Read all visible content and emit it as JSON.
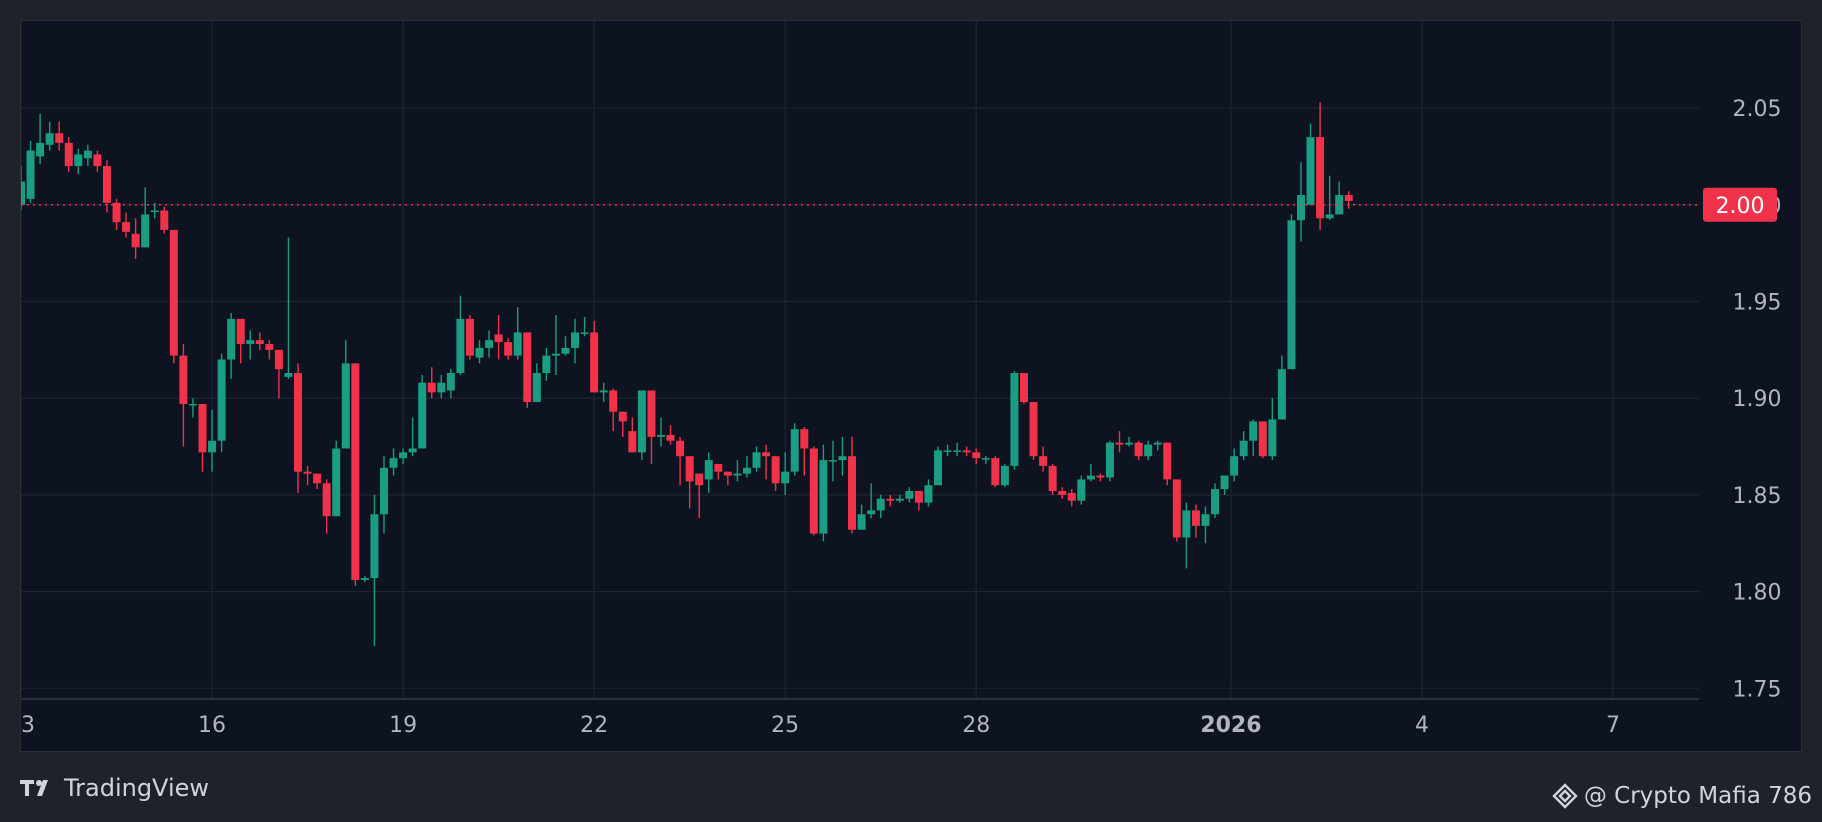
{
  "branding": {
    "logo_text": "TradingView",
    "attribution": "@ Crypto Mafia 786"
  },
  "colors": {
    "up": "#1a9d82",
    "down": "#f0334a",
    "last_price": "#f0334a"
  },
  "chart_data": {
    "type": "candlestick",
    "x_tick_labels": [
      {
        "label": "3",
        "day": 13
      },
      {
        "label": "16",
        "day": 16
      },
      {
        "label": "19",
        "day": 19
      },
      {
        "label": "22",
        "day": 22
      },
      {
        "label": "25",
        "day": 25
      },
      {
        "label": "28",
        "day": 28
      },
      {
        "label": "2026",
        "day": 32,
        "bold": true
      },
      {
        "label": "4",
        "day": 35
      },
      {
        "label": "7",
        "day": 38
      }
    ],
    "y_ticks": [
      "2.05",
      "2.00",
      "1.95",
      "1.90",
      "1.85",
      "1.80",
      "1.75"
    ],
    "ylim": [
      1.745,
      2.095
    ],
    "xlim_days": [
      13,
      39.35
    ],
    "grid": true,
    "last_price": "2.00",
    "candles": [
      [
        13.0,
        2.0,
        2.012,
        2.02,
        1.997
      ],
      [
        13.15,
        2.003,
        2.028,
        2.033,
        2.001
      ],
      [
        13.3,
        2.025,
        2.032,
        2.047,
        2.021
      ],
      [
        13.45,
        2.031,
        2.037,
        2.043,
        2.028
      ],
      [
        13.6,
        2.037,
        2.032,
        2.043,
        2.028
      ],
      [
        13.75,
        2.032,
        2.02,
        2.035,
        2.017
      ],
      [
        13.9,
        2.02,
        2.026,
        2.029,
        2.016
      ],
      [
        14.05,
        2.024,
        2.028,
        2.031,
        2.02
      ],
      [
        14.2,
        2.026,
        2.02,
        2.028,
        2.017
      ],
      [
        14.35,
        2.02,
        2.001,
        2.023,
        1.996
      ],
      [
        14.5,
        2.001,
        1.991,
        2.003,
        1.987
      ],
      [
        14.65,
        1.991,
        1.986,
        1.996,
        1.983
      ],
      [
        14.8,
        1.985,
        1.978,
        1.993,
        1.972
      ],
      [
        14.95,
        1.978,
        1.995,
        2.009,
        1.978
      ],
      [
        15.1,
        1.997,
        1.997,
        2.001,
        1.993
      ],
      [
        15.25,
        1.997,
        1.987,
        1.999,
        1.985
      ],
      [
        15.4,
        1.987,
        1.922,
        1.987,
        1.918
      ],
      [
        15.55,
        1.922,
        1.897,
        1.928,
        1.875
      ],
      [
        15.7,
        1.897,
        1.897,
        1.9,
        1.89
      ],
      [
        15.85,
        1.897,
        1.872,
        1.897,
        1.862
      ],
      [
        16.0,
        1.872,
        1.878,
        1.894,
        1.862
      ],
      [
        16.15,
        1.878,
        1.92,
        1.923,
        1.872
      ],
      [
        16.3,
        1.92,
        1.941,
        1.944,
        1.91
      ],
      [
        16.45,
        1.941,
        1.928,
        1.941,
        1.918
      ],
      [
        16.6,
        1.928,
        1.93,
        1.935,
        1.92
      ],
      [
        16.75,
        1.93,
        1.928,
        1.934,
        1.925
      ],
      [
        16.9,
        1.928,
        1.925,
        1.93,
        1.92
      ],
      [
        17.05,
        1.925,
        1.915,
        1.925,
        1.9
      ],
      [
        17.2,
        1.911,
        1.913,
        1.983,
        1.91
      ],
      [
        17.35,
        1.913,
        1.862,
        1.918,
        1.851
      ],
      [
        17.5,
        1.862,
        1.861,
        1.865,
        1.855
      ],
      [
        17.65,
        1.861,
        1.856,
        1.861,
        1.853
      ],
      [
        17.8,
        1.856,
        1.839,
        1.858,
        1.83
      ],
      [
        17.95,
        1.839,
        1.874,
        1.878,
        1.839
      ],
      [
        18.1,
        1.874,
        1.918,
        1.93,
        1.874
      ],
      [
        18.25,
        1.918,
        1.806,
        1.918,
        1.803
      ],
      [
        18.4,
        1.806,
        1.807,
        1.808,
        1.805
      ],
      [
        18.55,
        1.807,
        1.84,
        1.85,
        1.772
      ],
      [
        18.7,
        1.84,
        1.864,
        1.87,
        1.83
      ],
      [
        18.85,
        1.864,
        1.869,
        1.874,
        1.86
      ],
      [
        19.0,
        1.869,
        1.872,
        1.874,
        1.866
      ],
      [
        19.15,
        1.872,
        1.874,
        1.89,
        1.87
      ],
      [
        19.3,
        1.874,
        1.908,
        1.912,
        1.874
      ],
      [
        19.45,
        1.908,
        1.903,
        1.916,
        1.9
      ],
      [
        19.6,
        1.903,
        1.908,
        1.912,
        1.9
      ],
      [
        19.75,
        1.904,
        1.913,
        1.915,
        1.9
      ],
      [
        19.9,
        1.913,
        1.941,
        1.953,
        1.912
      ],
      [
        20.05,
        1.941,
        1.922,
        1.943,
        1.92
      ],
      [
        20.2,
        1.921,
        1.926,
        1.93,
        1.918
      ],
      [
        20.35,
        1.926,
        1.93,
        1.935,
        1.921
      ],
      [
        20.5,
        1.933,
        1.929,
        1.943,
        1.92
      ],
      [
        20.65,
        1.929,
        1.922,
        1.931,
        1.92
      ],
      [
        20.8,
        1.922,
        1.934,
        1.947,
        1.92
      ],
      [
        20.95,
        1.934,
        1.898,
        1.934,
        1.895
      ],
      [
        21.1,
        1.898,
        1.913,
        1.918,
        1.902
      ],
      [
        21.25,
        1.913,
        1.922,
        1.926,
        1.909
      ],
      [
        21.4,
        1.922,
        1.923,
        1.943,
        1.912
      ],
      [
        21.55,
        1.923,
        1.926,
        1.932,
        1.922
      ],
      [
        21.7,
        1.926,
        1.934,
        1.941,
        1.918
      ],
      [
        21.85,
        1.934,
        1.934,
        1.942,
        1.932
      ],
      [
        22.0,
        1.934,
        1.903,
        1.94,
        1.903
      ],
      [
        22.15,
        1.903,
        1.904,
        1.908,
        1.898
      ],
      [
        22.3,
        1.904,
        1.893,
        1.905,
        1.883
      ],
      [
        22.45,
        1.893,
        1.888,
        1.893,
        1.88
      ],
      [
        22.6,
        1.883,
        1.872,
        1.89,
        1.872
      ],
      [
        22.75,
        1.872,
        1.904,
        1.904,
        1.868
      ],
      [
        22.9,
        1.904,
        1.88,
        1.904,
        1.866
      ],
      [
        23.05,
        1.88,
        1.881,
        1.89,
        1.875
      ],
      [
        23.2,
        1.881,
        1.878,
        1.886,
        1.876
      ],
      [
        23.35,
        1.878,
        1.87,
        1.88,
        1.855
      ],
      [
        23.5,
        1.87,
        1.857,
        1.87,
        1.843
      ],
      [
        23.65,
        1.861,
        1.855,
        1.861,
        1.838
      ],
      [
        23.8,
        1.858,
        1.868,
        1.872,
        1.851
      ],
      [
        23.95,
        1.866,
        1.862,
        1.866,
        1.858
      ],
      [
        24.1,
        1.862,
        1.86,
        1.862,
        1.855
      ],
      [
        24.25,
        1.86,
        1.861,
        1.868,
        1.857
      ],
      [
        24.4,
        1.861,
        1.864,
        1.87,
        1.859
      ],
      [
        24.55,
        1.864,
        1.872,
        1.875,
        1.862
      ],
      [
        24.7,
        1.872,
        1.87,
        1.876,
        1.858
      ],
      [
        24.85,
        1.87,
        1.856,
        1.87,
        1.852
      ],
      [
        25.0,
        1.856,
        1.862,
        1.872,
        1.85
      ],
      [
        25.15,
        1.862,
        1.884,
        1.887,
        1.86
      ],
      [
        25.3,
        1.884,
        1.874,
        1.885,
        1.86
      ],
      [
        25.45,
        1.874,
        1.83,
        1.875,
        1.829
      ],
      [
        25.6,
        1.83,
        1.868,
        1.876,
        1.826
      ],
      [
        25.75,
        1.868,
        1.868,
        1.878,
        1.857
      ],
      [
        25.9,
        1.868,
        1.87,
        1.88,
        1.86
      ],
      [
        26.05,
        1.87,
        1.832,
        1.88,
        1.83
      ],
      [
        26.2,
        1.832,
        1.84,
        1.845,
        1.835
      ],
      [
        26.35,
        1.84,
        1.842,
        1.856,
        1.838
      ],
      [
        26.5,
        1.842,
        1.848,
        1.85,
        1.838
      ],
      [
        26.65,
        1.848,
        1.847,
        1.85,
        1.844
      ],
      [
        26.8,
        1.847,
        1.848,
        1.85,
        1.846
      ],
      [
        26.95,
        1.848,
        1.852,
        1.854,
        1.846
      ],
      [
        27.1,
        1.852,
        1.846,
        1.852,
        1.842
      ],
      [
        27.25,
        1.846,
        1.855,
        1.858,
        1.844
      ],
      [
        27.4,
        1.855,
        1.873,
        1.875,
        1.855
      ],
      [
        27.55,
        1.873,
        1.873,
        1.876,
        1.87
      ],
      [
        27.7,
        1.873,
        1.873,
        1.877,
        1.87
      ],
      [
        27.85,
        1.873,
        1.872,
        1.875,
        1.87
      ],
      [
        28.0,
        1.872,
        1.869,
        1.874,
        1.866
      ],
      [
        28.15,
        1.869,
        1.869,
        1.87,
        1.866
      ],
      [
        28.3,
        1.869,
        1.855,
        1.87,
        1.854
      ],
      [
        28.45,
        1.855,
        1.865,
        1.866,
        1.854
      ],
      [
        28.6,
        1.865,
        1.913,
        1.914,
        1.863
      ],
      [
        28.75,
        1.913,
        1.898,
        1.913,
        1.897
      ],
      [
        28.9,
        1.898,
        1.87,
        1.898,
        1.868
      ],
      [
        29.05,
        1.87,
        1.865,
        1.875,
        1.862
      ],
      [
        29.2,
        1.865,
        1.852,
        1.866,
        1.85
      ],
      [
        29.35,
        1.852,
        1.85,
        1.854,
        1.848
      ],
      [
        29.5,
        1.851,
        1.847,
        1.853,
        1.844
      ],
      [
        29.65,
        1.847,
        1.858,
        1.86,
        1.845
      ],
      [
        29.8,
        1.858,
        1.86,
        1.866,
        1.857
      ],
      [
        29.95,
        1.86,
        1.859,
        1.861,
        1.857
      ],
      [
        30.1,
        1.859,
        1.877,
        1.878,
        1.857
      ],
      [
        30.25,
        1.877,
        1.876,
        1.883,
        1.872
      ],
      [
        30.4,
        1.876,
        1.877,
        1.88,
        1.875
      ],
      [
        30.55,
        1.877,
        1.87,
        1.878,
        1.868
      ],
      [
        30.7,
        1.87,
        1.876,
        1.878,
        1.868
      ],
      [
        30.85,
        1.876,
        1.877,
        1.878,
        1.873
      ],
      [
        31.0,
        1.877,
        1.858,
        1.877,
        1.855
      ],
      [
        31.15,
        1.858,
        1.828,
        1.858,
        1.826
      ],
      [
        31.3,
        1.828,
        1.842,
        1.846,
        1.812
      ],
      [
        31.45,
        1.842,
        1.834,
        1.845,
        1.828
      ],
      [
        31.6,
        1.834,
        1.84,
        1.844,
        1.825
      ],
      [
        31.75,
        1.84,
        1.853,
        1.856,
        1.838
      ],
      [
        31.9,
        1.853,
        1.86,
        1.86,
        1.85
      ],
      [
        32.05,
        1.86,
        1.87,
        1.874,
        1.857
      ],
      [
        32.2,
        1.87,
        1.878,
        1.883,
        1.868
      ],
      [
        32.35,
        1.878,
        1.888,
        1.889,
        1.87
      ],
      [
        32.5,
        1.888,
        1.87,
        1.888,
        1.869
      ],
      [
        32.65,
        1.87,
        1.889,
        1.9,
        1.868
      ],
      [
        32.8,
        1.889,
        1.915,
        1.922,
        1.889
      ],
      [
        32.95,
        1.915,
        1.992,
        1.995,
        1.915
      ],
      [
        33.1,
        1.992,
        2.005,
        2.022,
        1.981
      ],
      [
        33.25,
        2.0,
        2.035,
        2.042,
        2.0
      ],
      [
        33.4,
        2.035,
        1.993,
        2.053,
        1.987
      ],
      [
        33.55,
        1.993,
        1.995,
        2.015,
        1.992
      ],
      [
        33.7,
        1.995,
        2.005,
        2.012,
        1.997
      ],
      [
        33.85,
        2.005,
        2.002,
        2.007,
        1.998
      ]
    ]
  }
}
